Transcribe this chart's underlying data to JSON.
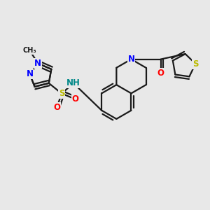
{
  "bg_color": "#e8e8e8",
  "bond_color": "#1a1a1a",
  "bond_width": 1.6,
  "atom_colors": {
    "N": "#0000ff",
    "O": "#ff0000",
    "S": "#bbbb00",
    "NH": "#008888",
    "C": "#1a1a1a"
  },
  "font_size": 8.5,
  "fig_size": [
    3.0,
    3.0
  ],
  "dpi": 100
}
